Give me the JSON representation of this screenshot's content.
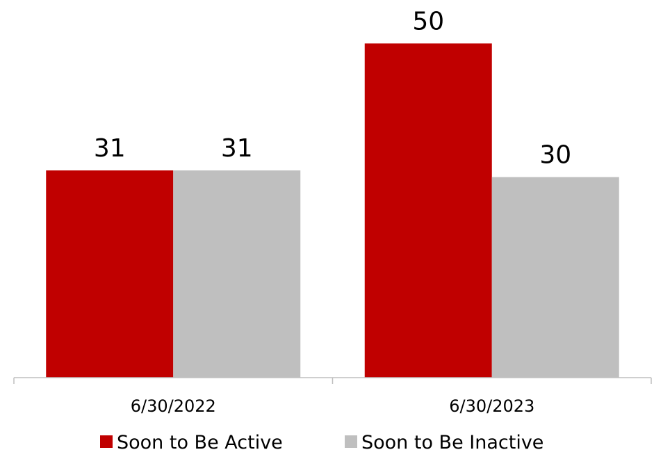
{
  "chart_data": {
    "type": "bar",
    "categories": [
      "6/30/2022",
      "6/30/2023"
    ],
    "series": [
      {
        "name": "Soon to Be Active",
        "values": [
          31,
          50
        ],
        "color": "#c00000"
      },
      {
        "name": "Soon to Be Inactive",
        "values": [
          31,
          30
        ],
        "color": "#bfbfbf"
      }
    ],
    "ylim": [
      0,
      54
    ],
    "grid": false,
    "legend_position": "bottom",
    "axis_color": "#bfbfbf"
  }
}
